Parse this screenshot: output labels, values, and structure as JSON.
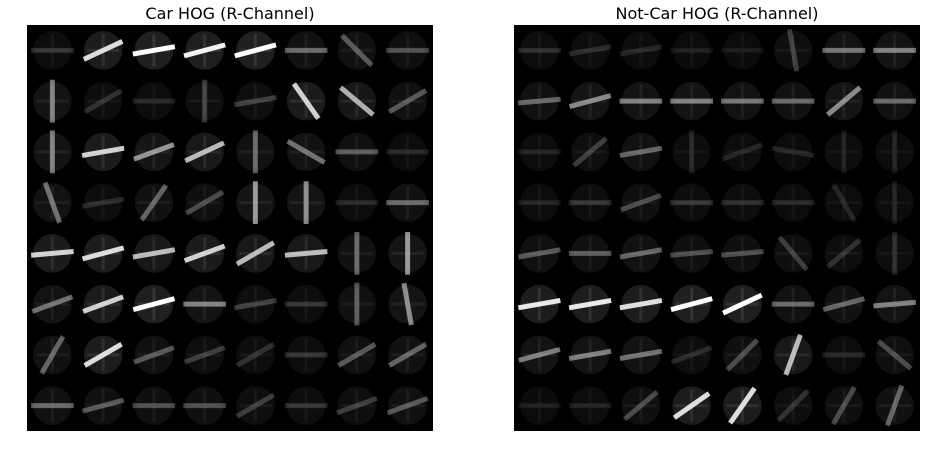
{
  "figures": [
    {
      "id": "car",
      "title": "Car HOG (R-Channel)",
      "background": "#000000",
      "foreground": "#ffffff",
      "grid": {
        "rows": 8,
        "cols": 8
      },
      "cells": [
        [
          {
            "a": 0,
            "i": 0.15
          },
          {
            "a": -25,
            "i": 0.85
          },
          {
            "a": -10,
            "i": 1.0
          },
          {
            "a": -15,
            "i": 0.95
          },
          {
            "a": -15,
            "i": 1.0
          },
          {
            "a": 0,
            "i": 0.35
          },
          {
            "a": 45,
            "i": 0.3
          },
          {
            "a": 0,
            "i": 0.25
          }
        ],
        [
          {
            "a": 90,
            "i": 0.45
          },
          {
            "a": -30,
            "i": 0.15
          },
          {
            "a": 0,
            "i": 0.1
          },
          {
            "a": 90,
            "i": 0.2
          },
          {
            "a": -10,
            "i": 0.2
          },
          {
            "a": 55,
            "i": 0.8
          },
          {
            "a": 40,
            "i": 0.65
          },
          {
            "a": -30,
            "i": 0.3
          }
        ],
        [
          {
            "a": 90,
            "i": 0.45
          },
          {
            "a": -10,
            "i": 0.8
          },
          {
            "a": -20,
            "i": 0.55
          },
          {
            "a": -25,
            "i": 0.7
          },
          {
            "a": 90,
            "i": 0.35
          },
          {
            "a": 30,
            "i": 0.4
          },
          {
            "a": 0,
            "i": 0.3
          },
          {
            "a": 0,
            "i": 0.1
          }
        ],
        [
          {
            "a": 70,
            "i": 0.4
          },
          {
            "a": -10,
            "i": 0.12
          },
          {
            "a": -55,
            "i": 0.35
          },
          {
            "a": -30,
            "i": 0.25
          },
          {
            "a": 90,
            "i": 0.55
          },
          {
            "a": 90,
            "i": 0.5
          },
          {
            "a": 0,
            "i": 0.1
          },
          {
            "a": 0,
            "i": 0.35
          }
        ],
        [
          {
            "a": -5,
            "i": 0.8
          },
          {
            "a": -15,
            "i": 0.85
          },
          {
            "a": -10,
            "i": 0.7
          },
          {
            "a": -20,
            "i": 0.8
          },
          {
            "a": -30,
            "i": 0.7
          },
          {
            "a": -5,
            "i": 0.7
          },
          {
            "a": 90,
            "i": 0.35
          },
          {
            "a": 90,
            "i": 0.55
          }
        ],
        [
          {
            "a": -20,
            "i": 0.4
          },
          {
            "a": -20,
            "i": 0.8
          },
          {
            "a": -15,
            "i": 1.0
          },
          {
            "a": 0,
            "i": 0.45
          },
          {
            "a": -10,
            "i": 0.2
          },
          {
            "a": 0,
            "i": 0.15
          },
          {
            "a": 90,
            "i": 0.3
          },
          {
            "a": 80,
            "i": 0.5
          }
        ],
        [
          {
            "a": -60,
            "i": 0.35
          },
          {
            "a": -30,
            "i": 0.85
          },
          {
            "a": -20,
            "i": 0.3
          },
          {
            "a": -20,
            "i": 0.2
          },
          {
            "a": -30,
            "i": 0.15
          },
          {
            "a": 0,
            "i": 0.15
          },
          {
            "a": -30,
            "i": 0.3
          },
          {
            "a": -30,
            "i": 0.35
          }
        ],
        [
          {
            "a": 0,
            "i": 0.35
          },
          {
            "a": -15,
            "i": 0.3
          },
          {
            "a": 0,
            "i": 0.25
          },
          {
            "a": 0,
            "i": 0.25
          },
          {
            "a": -30,
            "i": 0.2
          },
          {
            "a": 0,
            "i": 0.15
          },
          {
            "a": -20,
            "i": 0.2
          },
          {
            "a": -20,
            "i": 0.3
          }
        ]
      ]
    },
    {
      "id": "notcar",
      "title": "Not-Car HOG (R-Channel)",
      "background": "#000000",
      "foreground": "#ffffff",
      "grid": {
        "rows": 8,
        "cols": 8
      },
      "cells": [
        [
          {
            "a": 0,
            "i": 0.12
          },
          {
            "a": -10,
            "i": 0.12
          },
          {
            "a": -10,
            "i": 0.1
          },
          {
            "a": 0,
            "i": 0.06
          },
          {
            "a": 0,
            "i": 0.05
          },
          {
            "a": 80,
            "i": 0.2
          },
          {
            "a": 0,
            "i": 0.4
          },
          {
            "a": 0,
            "i": 0.45
          }
        ],
        [
          {
            "a": -5,
            "i": 0.35
          },
          {
            "a": -15,
            "i": 0.5
          },
          {
            "a": 0,
            "i": 0.45
          },
          {
            "a": 0,
            "i": 0.45
          },
          {
            "a": 0,
            "i": 0.4
          },
          {
            "a": 0,
            "i": 0.35
          },
          {
            "a": -40,
            "i": 0.5
          },
          {
            "a": 0,
            "i": 0.35
          }
        ],
        [
          {
            "a": 0,
            "i": 0.08
          },
          {
            "a": -40,
            "i": 0.2
          },
          {
            "a": -10,
            "i": 0.35
          },
          {
            "a": 90,
            "i": 0.1
          },
          {
            "a": -20,
            "i": 0.1
          },
          {
            "a": 10,
            "i": 0.1
          },
          {
            "a": 90,
            "i": 0.08
          },
          {
            "a": 90,
            "i": 0.08
          }
        ],
        [
          {
            "a": 0,
            "i": 0.08
          },
          {
            "a": 0,
            "i": 0.15
          },
          {
            "a": -20,
            "i": 0.25
          },
          {
            "a": 0,
            "i": 0.15
          },
          {
            "a": 0,
            "i": 0.12
          },
          {
            "a": 0,
            "i": 0.1
          },
          {
            "a": 60,
            "i": 0.1
          },
          {
            "a": 90,
            "i": 0.08
          }
        ],
        [
          {
            "a": -10,
            "i": 0.3
          },
          {
            "a": 0,
            "i": 0.3
          },
          {
            "a": -10,
            "i": 0.35
          },
          {
            "a": -5,
            "i": 0.25
          },
          {
            "a": -5,
            "i": 0.25
          },
          {
            "a": 50,
            "i": 0.2
          },
          {
            "a": -40,
            "i": 0.15
          },
          {
            "a": 90,
            "i": 0.12
          }
        ],
        [
          {
            "a": -10,
            "i": 0.9
          },
          {
            "a": -10,
            "i": 0.9
          },
          {
            "a": -10,
            "i": 0.85
          },
          {
            "a": -15,
            "i": 1.0
          },
          {
            "a": -25,
            "i": 1.0
          },
          {
            "a": 0,
            "i": 0.35
          },
          {
            "a": -15,
            "i": 0.35
          },
          {
            "a": -5,
            "i": 0.45
          }
        ],
        [
          {
            "a": -15,
            "i": 0.45
          },
          {
            "a": -10,
            "i": 0.45
          },
          {
            "a": -10,
            "i": 0.4
          },
          {
            "a": -20,
            "i": 0.12
          },
          {
            "a": -45,
            "i": 0.25
          },
          {
            "a": -70,
            "i": 0.7
          },
          {
            "a": 0,
            "i": 0.1
          },
          {
            "a": 40,
            "i": 0.25
          }
        ],
        [
          {
            "a": 0,
            "i": 0.06
          },
          {
            "a": 0,
            "i": 0.08
          },
          {
            "a": -40,
            "i": 0.25
          },
          {
            "a": -35,
            "i": 0.85
          },
          {
            "a": -55,
            "i": 0.85
          },
          {
            "a": -45,
            "i": 0.15
          },
          {
            "a": -60,
            "i": 0.25
          },
          {
            "a": -70,
            "i": 0.35
          }
        ]
      ]
    }
  ]
}
